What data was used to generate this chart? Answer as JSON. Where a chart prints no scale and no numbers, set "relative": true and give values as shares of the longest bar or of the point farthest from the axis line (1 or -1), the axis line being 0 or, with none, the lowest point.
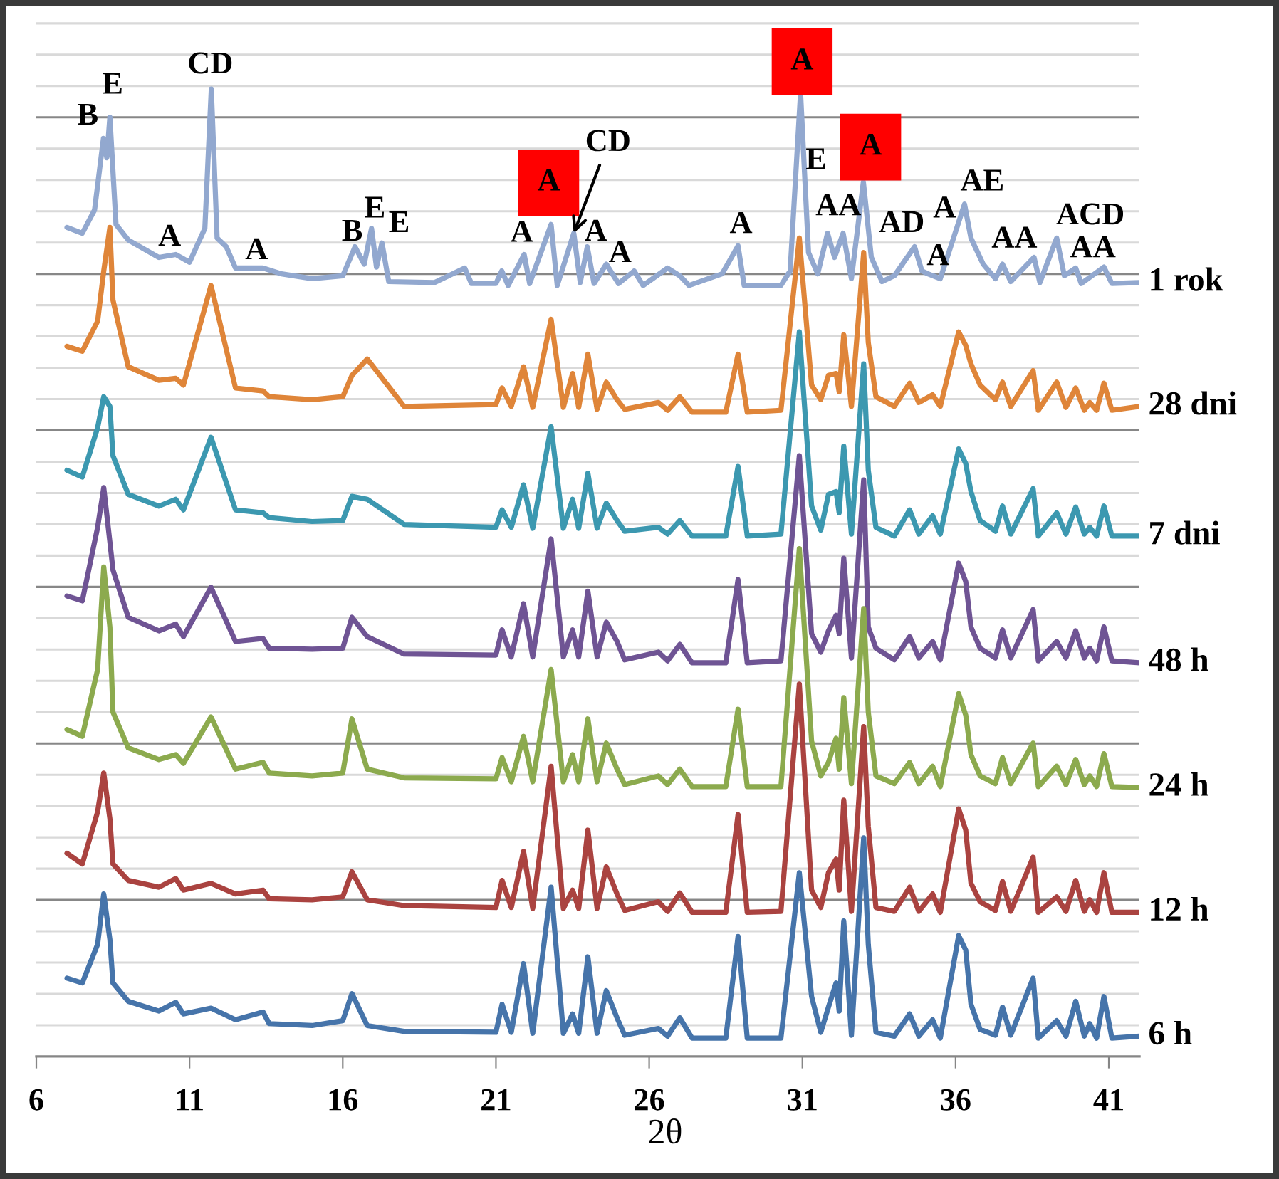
{
  "chart_data": {
    "type": "line",
    "xlabel": "2θ",
    "relative": true,
    "grid": true,
    "xlim": [
      6,
      42
    ],
    "xticks": [
      6,
      11,
      16,
      21,
      26,
      31,
      36,
      41
    ],
    "x": [
      7.0,
      7.5,
      8.0,
      8.2,
      8.4,
      8.5,
      9.0,
      10.0,
      10.55,
      10.8,
      11.7,
      12.5,
      13.4,
      13.6,
      15.0,
      16.0,
      16.3,
      16.8,
      18.0,
      21.0,
      21.2,
      21.5,
      21.9,
      22.2,
      22.8,
      23.2,
      23.5,
      23.7,
      24.0,
      24.3,
      24.6,
      24.95,
      25.2,
      26.3,
      26.6,
      27.0,
      27.4,
      28.5,
      28.9,
      29.2,
      30.3,
      30.9,
      31.3,
      31.6,
      31.85,
      32.1,
      32.2,
      32.35,
      32.6,
      33.0,
      33.15,
      33.4,
      34.0,
      34.5,
      34.8,
      35.25,
      35.5,
      36.1,
      36.33,
      36.5,
      36.8,
      37.3,
      37.53,
      37.8,
      38.53,
      38.7,
      39.3,
      39.6,
      39.92,
      40.2,
      40.38,
      40.6,
      40.84,
      41.1,
      42.0
    ],
    "series": [
      {
        "name": "1 rok",
        "color": "#92a8cf",
        "x": [
          7.0,
          7.5,
          7.9,
          8.19,
          8.3,
          8.4,
          8.6,
          9.0,
          10.0,
          10.55,
          11.0,
          11.5,
          11.71,
          11.9,
          12.2,
          12.5,
          13.4,
          14.0,
          15.0,
          16.0,
          16.4,
          16.7,
          16.94,
          17.1,
          17.28,
          17.5,
          19.0,
          19.98,
          20.2,
          21.0,
          21.19,
          21.4,
          21.92,
          22.1,
          22.8,
          23.0,
          23.54,
          23.75,
          23.98,
          24.2,
          24.6,
          25.0,
          25.51,
          25.8,
          26.6,
          27.0,
          27.3,
          28.38,
          28.9,
          29.1,
          30.3,
          30.6,
          30.94,
          31.2,
          31.5,
          31.82,
          32.05,
          32.33,
          32.6,
          32.99,
          33.25,
          33.6,
          34.0,
          34.66,
          34.9,
          35.1,
          35.5,
          36.29,
          36.5,
          36.9,
          37.3,
          37.53,
          37.8,
          38.56,
          38.75,
          39.3,
          39.55,
          39.92,
          40.1,
          40.84,
          41.1,
          42.0
        ],
        "values": [
          0.857,
          0.851,
          0.875,
          0.949,
          0.929,
          0.971,
          0.86,
          0.844,
          0.826,
          0.829,
          0.821,
          0.856,
          1,
          0.846,
          0.837,
          0.815,
          0.815,
          0.809,
          0.804,
          0.807,
          0.837,
          0.819,
          0.856,
          0.816,
          0.841,
          0.801,
          0.8,
          0.815,
          0.799,
          0.799,
          0.812,
          0.797,
          0.829,
          0.799,
          0.86,
          0.797,
          0.851,
          0.8,
          0.837,
          0.799,
          0.819,
          0.799,
          0.812,
          0.797,
          0.815,
          0.807,
          0.797,
          0.809,
          0.838,
          0.797,
          0.797,
          0.812,
          0.996,
          0.831,
          0.809,
          0.851,
          0.826,
          0.851,
          0.804,
          0.904,
          0.826,
          0.801,
          0.807,
          0.837,
          0.812,
          0.809,
          0.804,
          0.881,
          0.846,
          0.819,
          0.804,
          0.819,
          0.801,
          0.826,
          0.8,
          0.846,
          0.807,
          0.815,
          0.799,
          0.816,
          0.799,
          0.8
        ]
      },
      {
        "name": "28 dni",
        "color": "#df8539",
        "values": [
          0.734,
          0.729,
          0.76,
          0.812,
          0.857,
          0.782,
          0.713,
          0.699,
          0.701,
          0.694,
          0.797,
          0.691,
          0.688,
          0.682,
          0.679,
          0.682,
          0.704,
          0.721,
          0.672,
          0.674,
          0.691,
          0.672,
          0.713,
          0.671,
          0.762,
          0.671,
          0.706,
          0.671,
          0.726,
          0.669,
          0.697,
          0.679,
          0.669,
          0.676,
          0.668,
          0.682,
          0.666,
          0.666,
          0.726,
          0.666,
          0.668,
          0.846,
          0.694,
          0.679,
          0.704,
          0.706,
          0.687,
          0.746,
          0.672,
          0.831,
          0.738,
          0.682,
          0.672,
          0.696,
          0.676,
          0.684,
          0.672,
          0.749,
          0.735,
          0.716,
          0.694,
          0.679,
          0.697,
          0.672,
          0.709,
          0.668,
          0.697,
          0.671,
          0.691,
          0.668,
          0.676,
          0.668,
          0.696,
          0.668,
          0.672
        ]
      },
      {
        "name": "7 dni",
        "color": "#3c98b0",
        "values": [
          0.606,
          0.599,
          0.65,
          0.682,
          0.672,
          0.621,
          0.581,
          0.569,
          0.576,
          0.565,
          0.64,
          0.565,
          0.562,
          0.557,
          0.553,
          0.554,
          0.579,
          0.576,
          0.55,
          0.547,
          0.565,
          0.547,
          0.591,
          0.546,
          0.651,
          0.546,
          0.576,
          0.546,
          0.603,
          0.546,
          0.572,
          0.554,
          0.543,
          0.547,
          0.54,
          0.554,
          0.538,
          0.538,
          0.61,
          0.538,
          0.54,
          0.749,
          0.569,
          0.544,
          0.581,
          0.584,
          0.562,
          0.631,
          0.54,
          0.716,
          0.606,
          0.547,
          0.538,
          0.565,
          0.54,
          0.559,
          0.54,
          0.628,
          0.613,
          0.584,
          0.554,
          0.543,
          0.569,
          0.54,
          0.587,
          0.538,
          0.562,
          0.54,
          0.568,
          0.54,
          0.547,
          0.538,
          0.569,
          0.538,
          0.538
        ]
      },
      {
        "name": "48 h",
        "color": "#6f5494",
        "values": [
          0.476,
          0.471,
          0.547,
          0.588,
          0.532,
          0.503,
          0.454,
          0.44,
          0.447,
          0.434,
          0.485,
          0.429,
          0.432,
          0.422,
          0.421,
          0.422,
          0.454,
          0.434,
          0.416,
          0.415,
          0.441,
          0.413,
          0.468,
          0.413,
          0.535,
          0.413,
          0.441,
          0.413,
          0.481,
          0.413,
          0.449,
          0.429,
          0.41,
          0.418,
          0.409,
          0.426,
          0.407,
          0.407,
          0.493,
          0.407,
          0.409,
          0.621,
          0.437,
          0.418,
          0.44,
          0.456,
          0.437,
          0.515,
          0.412,
          0.596,
          0.444,
          0.422,
          0.41,
          0.434,
          0.412,
          0.429,
          0.41,
          0.51,
          0.491,
          0.444,
          0.422,
          0.412,
          0.441,
          0.412,
          0.462,
          0.409,
          0.429,
          0.412,
          0.44,
          0.412,
          0.422,
          0.409,
          0.444,
          0.409,
          0.407
        ]
      },
      {
        "name": "24 h",
        "color": "#8caa4e",
        "values": [
          0.338,
          0.331,
          0.4,
          0.506,
          0.444,
          0.356,
          0.319,
          0.307,
          0.312,
          0.303,
          0.351,
          0.297,
          0.304,
          0.293,
          0.29,
          0.293,
          0.349,
          0.297,
          0.288,
          0.287,
          0.309,
          0.284,
          0.331,
          0.284,
          0.4,
          0.284,
          0.312,
          0.284,
          0.349,
          0.284,
          0.324,
          0.297,
          0.281,
          0.29,
          0.281,
          0.297,
          0.279,
          0.279,
          0.359,
          0.279,
          0.279,
          0.525,
          0.326,
          0.29,
          0.304,
          0.329,
          0.297,
          0.371,
          0.282,
          0.463,
          0.356,
          0.29,
          0.282,
          0.304,
          0.282,
          0.3,
          0.279,
          0.375,
          0.353,
          0.312,
          0.29,
          0.282,
          0.309,
          0.282,
          0.324,
          0.279,
          0.3,
          0.281,
          0.307,
          0.281,
          0.29,
          0.279,
          0.313,
          0.279,
          0.278
        ]
      },
      {
        "name": "12 h",
        "color": "#aa4340",
        "values": [
          0.21,
          0.199,
          0.253,
          0.293,
          0.246,
          0.199,
          0.182,
          0.175,
          0.184,
          0.172,
          0.179,
          0.168,
          0.172,
          0.163,
          0.162,
          0.165,
          0.191,
          0.162,
          0.156,
          0.154,
          0.182,
          0.154,
          0.212,
          0.153,
          0.3,
          0.153,
          0.172,
          0.153,
          0.234,
          0.153,
          0.196,
          0.168,
          0.151,
          0.16,
          0.15,
          0.169,
          0.149,
          0.149,
          0.25,
          0.149,
          0.15,
          0.385,
          0.172,
          0.154,
          0.19,
          0.204,
          0.172,
          0.265,
          0.15,
          0.341,
          0.238,
          0.154,
          0.15,
          0.175,
          0.15,
          0.168,
          0.149,
          0.256,
          0.234,
          0.179,
          0.16,
          0.151,
          0.181,
          0.15,
          0.206,
          0.149,
          0.165,
          0.15,
          0.182,
          0.15,
          0.162,
          0.149,
          0.19,
          0.149,
          0.149
        ]
      },
      {
        "name": "6 h",
        "color": "#4674aa",
        "values": [
          0.081,
          0.076,
          0.116,
          0.168,
          0.121,
          0.076,
          0.057,
          0.047,
          0.056,
          0.044,
          0.05,
          0.038,
          0.046,
          0.034,
          0.032,
          0.037,
          0.065,
          0.032,
          0.026,
          0.025,
          0.054,
          0.025,
          0.096,
          0.024,
          0.175,
          0.024,
          0.044,
          0.024,
          0.103,
          0.024,
          0.068,
          0.04,
          0.022,
          0.029,
          0.021,
          0.04,
          0.019,
          0.019,
          0.124,
          0.019,
          0.019,
          0.19,
          0.062,
          0.025,
          0.051,
          0.076,
          0.047,
          0.14,
          0.022,
          0.226,
          0.116,
          0.025,
          0.021,
          0.044,
          0.021,
          0.038,
          0.019,
          0.125,
          0.11,
          0.054,
          0.028,
          0.022,
          0.051,
          0.022,
          0.081,
          0.019,
          0.037,
          0.021,
          0.057,
          0.021,
          0.034,
          0.019,
          0.062,
          0.019,
          0.021
        ]
      }
    ],
    "annotations": [
      {
        "text": "B",
        "x": 8.19,
        "y": 0.949
      },
      {
        "text": "E",
        "x": 8.4,
        "y": 0.971
      },
      {
        "text": "CD",
        "x": 11.71,
        "y": 1
      },
      {
        "text": "A",
        "x": 10.55,
        "y": 0.829
      },
      {
        "text": "A",
        "x": 13.4,
        "y": 0.815
      },
      {
        "text": "B",
        "x": 16.4,
        "y": 0.837
      },
      {
        "text": "E",
        "x": 16.94,
        "y": 0.856
      },
      {
        "text": "E",
        "x": 17.28,
        "y": 0.841
      },
      {
        "text": "A",
        "x": 21.92,
        "y": 0.829
      },
      {
        "text": "A",
        "x": 22.8,
        "y": 0.86
      },
      {
        "text": "CD",
        "x": 23.54,
        "y": 0.851
      },
      {
        "text": "A",
        "x": 23.98,
        "y": 0.837
      },
      {
        "text": "A",
        "x": 24.6,
        "y": 0.819
      },
      {
        "text": "A",
        "x": 28.9,
        "y": 0.838
      },
      {
        "text": "A",
        "x": 30.94,
        "y": 0.996
      },
      {
        "text": "E",
        "x": 31.2,
        "y": 0.831
      },
      {
        "text": "AA",
        "x": 31.82,
        "y": 0.851
      },
      {
        "text": "A",
        "x": 32.99,
        "y": 0.904
      },
      {
        "text": "AD",
        "x": 34.66,
        "y": 0.837
      },
      {
        "text": "A",
        "x": 36.29,
        "y": 0.881
      },
      {
        "text": "A",
        "x": 35.1,
        "y": 0.809
      },
      {
        "text": "AE",
        "x": 36.29,
        "y": 0.881
      },
      {
        "text": "AA",
        "x": 37.53,
        "y": 0.819
      },
      {
        "text": "ACD",
        "x": 39.3,
        "y": 0.846
      },
      {
        "text": "AA",
        "x": 39.92,
        "y": 0.815
      }
    ]
  }
}
